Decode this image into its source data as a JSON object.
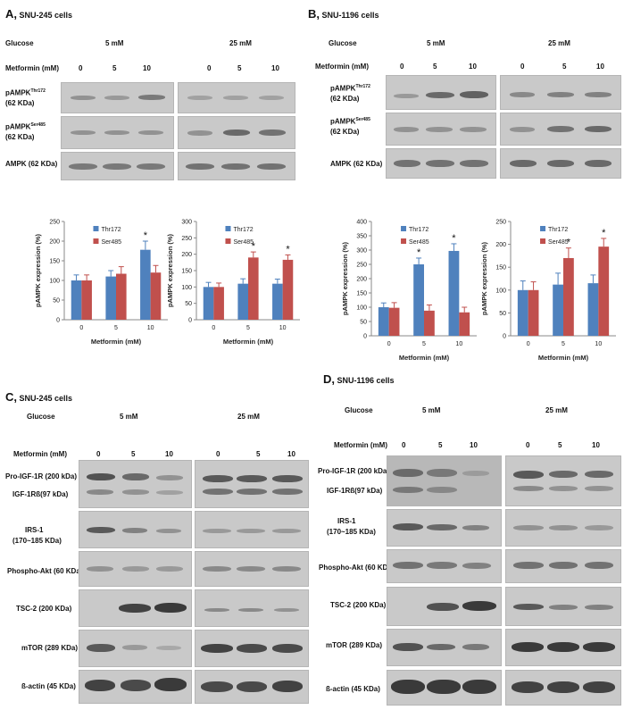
{
  "panels": {
    "A": {
      "letter": "A,",
      "title": "SNU-245 cells"
    },
    "B": {
      "letter": "B,",
      "title": "SNU-1196 cells"
    },
    "C": {
      "letter": "C,",
      "title": "SNU-245 cells"
    },
    "D": {
      "letter": "D,",
      "title": "SNU-1196 cells"
    }
  },
  "labels": {
    "glucose": "Glucose",
    "g5": "5 mM",
    "g25": "25 mM",
    "metformin": "Metformin (mM)",
    "doses": [
      "0",
      "5",
      "10"
    ],
    "top_blots": {
      "thr": "pAMPK",
      "thr_sup": "Thr172",
      "ser": "pAMPK",
      "ser_sup": "Ser485",
      "kda62": "(62 KDa)",
      "ampk": "AMPK (62 KDa)"
    },
    "bottom_blots": {
      "proigf": "Pro-IGF-1R (200 kDa)",
      "igf": "IGF-1Rß(97 kDa)",
      "irs": "IRS-1",
      "irs2": "(170~185 KDa)",
      "akt": "Phospho-Akt (60 KDa)",
      "tsc": "TSC-2 (200 KDa)",
      "mtor": "mTOR (289 KDa)",
      "actin": "ß-actin (45 KDa)"
    },
    "star": "*"
  },
  "chart_data": [
    {
      "id": "A-5mM",
      "type": "bar",
      "categories": [
        "0",
        "5",
        "10"
      ],
      "series": [
        {
          "name": "Thr172",
          "values": [
            100,
            110,
            178
          ],
          "errors": [
            14,
            15,
            22
          ]
        },
        {
          "name": "Ser485",
          "values": [
            100,
            117,
            120
          ],
          "errors": [
            14,
            18,
            18
          ]
        }
      ],
      "ylabel": "pAMPK expression (%)",
      "xlabel": "Metformin (mM)",
      "ylim": [
        0,
        250
      ],
      "yticks": [
        0,
        50,
        100,
        150,
        200,
        250
      ],
      "significant": [
        {
          "category": "10",
          "series": "Thr172"
        }
      ],
      "legend": "top-left"
    },
    {
      "id": "A-25mM",
      "type": "bar",
      "categories": [
        "0",
        "5",
        "10"
      ],
      "series": [
        {
          "name": "Thr172",
          "values": [
            100,
            110,
            110
          ],
          "errors": [
            14,
            15,
            14
          ]
        },
        {
          "name": "Ser485",
          "values": [
            100,
            190,
            183
          ],
          "errors": [
            12,
            17,
            15
          ]
        }
      ],
      "ylabel": "pAMPK expression (%)",
      "xlabel": "Metformin (mM)",
      "ylim": [
        0,
        300
      ],
      "yticks": [
        0,
        50,
        100,
        150,
        200,
        250,
        300
      ],
      "significant": [
        {
          "category": "5",
          "series": "Ser485"
        },
        {
          "category": "10",
          "series": "Ser485"
        }
      ],
      "legend": "top-left"
    },
    {
      "id": "B-5mM",
      "type": "bar",
      "categories": [
        "0",
        "5",
        "10"
      ],
      "series": [
        {
          "name": "Thr172",
          "values": [
            100,
            250,
            297
          ],
          "errors": [
            15,
            22,
            25
          ]
        },
        {
          "name": "Ser485",
          "values": [
            98,
            88,
            82
          ],
          "errors": [
            18,
            20,
            18
          ]
        }
      ],
      "ylabel": "pAMPK expression (%)",
      "xlabel": "Metformin (mM)",
      "ylim": [
        0,
        400
      ],
      "yticks": [
        0,
        50,
        100,
        150,
        200,
        250,
        300,
        350,
        400
      ],
      "significant": [
        {
          "category": "5",
          "series": "Thr172"
        },
        {
          "category": "10",
          "series": "Thr172"
        }
      ],
      "legend": "top-left"
    },
    {
      "id": "B-25mM",
      "type": "bar",
      "categories": [
        "0",
        "5",
        "10"
      ],
      "series": [
        {
          "name": "Thr172",
          "values": [
            100,
            112,
            115
          ],
          "errors": [
            20,
            25,
            18
          ]
        },
        {
          "name": "Ser485",
          "values": [
            100,
            170,
            195
          ],
          "errors": [
            18,
            22,
            18
          ]
        }
      ],
      "ylabel": "pAMPK expression (%)",
      "xlabel": "Metformin (mM)",
      "ylim": [
        0,
        250
      ],
      "yticks": [
        0,
        50,
        100,
        150,
        200,
        250
      ],
      "significant": [
        {
          "category": "5",
          "series": "Ser485"
        },
        {
          "category": "10",
          "series": "Ser485"
        }
      ],
      "legend": "top-left"
    }
  ],
  "colors": {
    "thr": "#4f81bd",
    "ser": "#c0504d"
  }
}
